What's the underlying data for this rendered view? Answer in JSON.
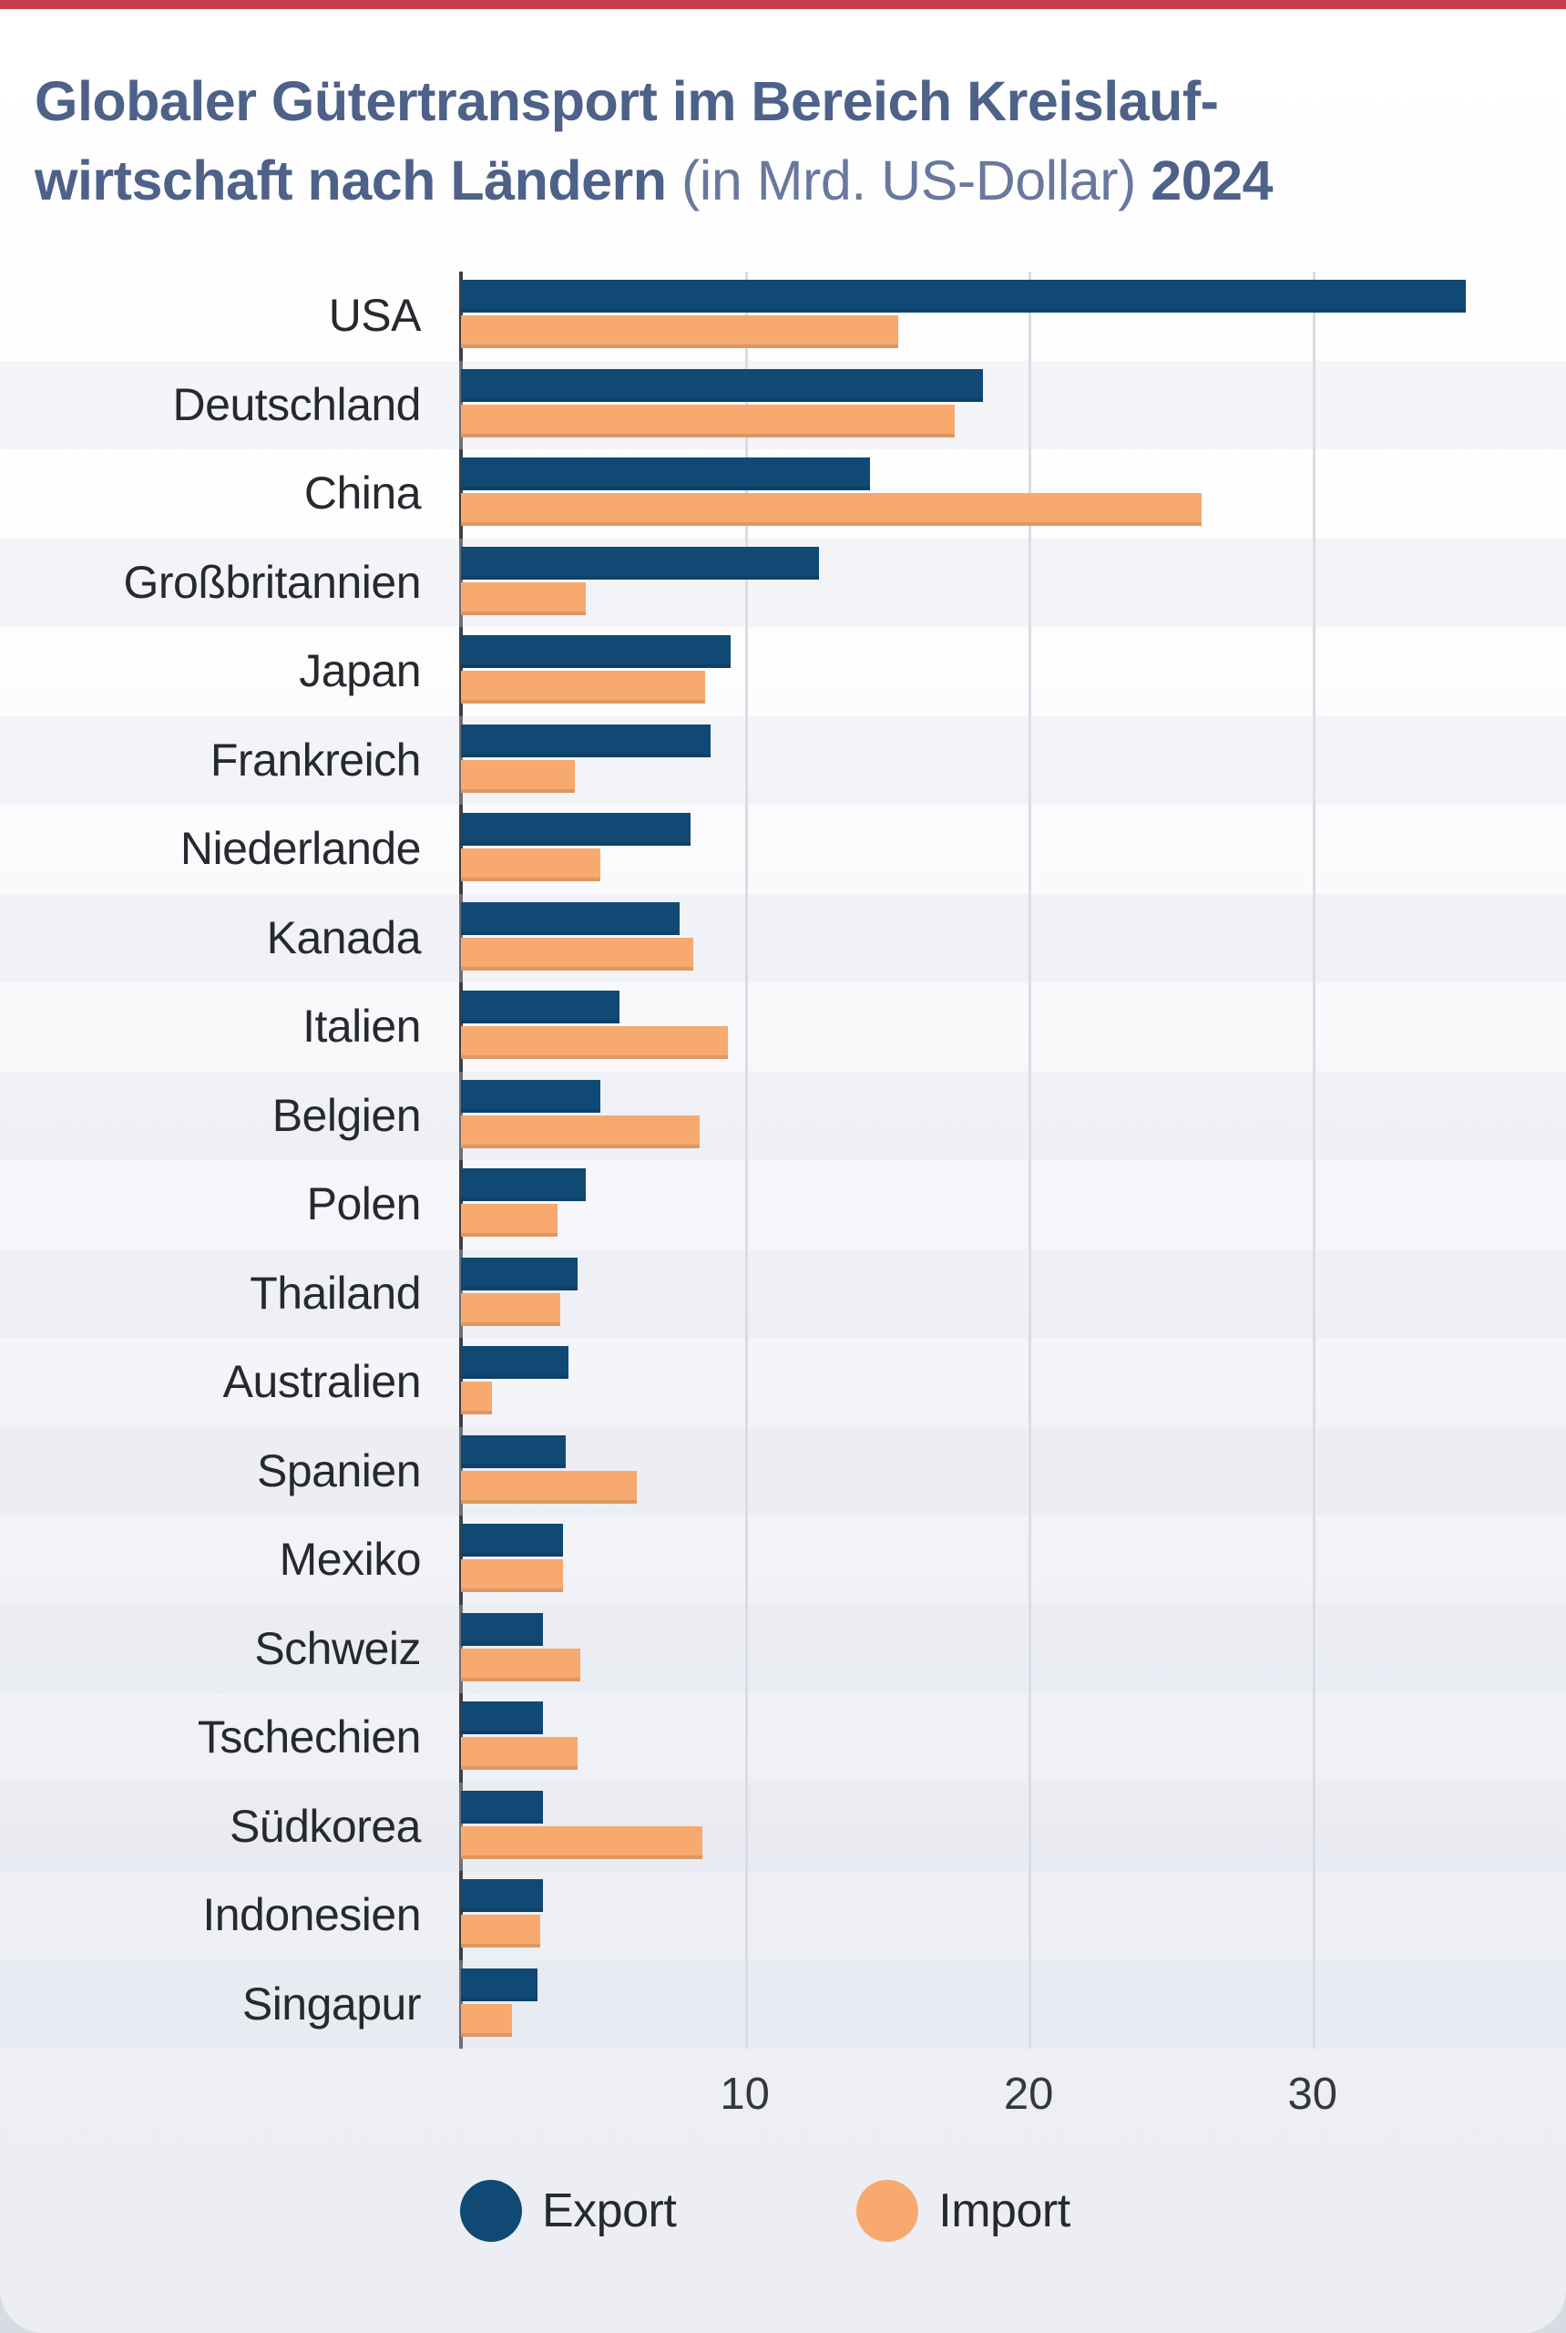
{
  "page": {
    "top_bar_color": "#c63f4f"
  },
  "title": {
    "line1_bold": "Globaler Gütertransport im Bereich Kreislauf-",
    "line2_bold": "wirtschaft nach Ländern",
    "line2_light": " (in Mrd. US-Dollar) ",
    "line2_year_bold": "2024"
  },
  "chart_data": {
    "type": "bar",
    "orientation": "horizontal",
    "title": "Globaler Gütertransport im Bereich Kreislaufwirtschaft nach Ländern (in Mrd. US-Dollar) 2024",
    "unit": "Mrd. US-Dollar",
    "categories": [
      "USA",
      "Deutschland",
      "China",
      "Großbritannien",
      "Japan",
      "Frankreich",
      "Niederlande",
      "Kanada",
      "Italien",
      "Belgien",
      "Polen",
      "Thailand",
      "Australien",
      "Spanien",
      "Mexiko",
      "Schweiz",
      "Tschechien",
      "Südkorea",
      "Indonesien",
      "Singapur"
    ],
    "series": [
      {
        "name": "Export",
        "color": "#104973",
        "values": [
          35.4,
          18.4,
          14.4,
          12.6,
          9.5,
          8.8,
          8.1,
          7.7,
          5.6,
          4.9,
          4.4,
          4.1,
          3.8,
          3.7,
          3.6,
          2.9,
          2.9,
          2.9,
          2.9,
          2.7
        ]
      },
      {
        "name": "Import",
        "color": "#f7a96e",
        "values": [
          15.4,
          17.4,
          26.1,
          4.4,
          8.6,
          4.0,
          4.9,
          8.2,
          9.4,
          8.4,
          3.4,
          3.5,
          1.1,
          6.2,
          3.6,
          4.2,
          4.1,
          8.5,
          2.8,
          1.8
        ]
      }
    ],
    "x_ticks": [
      10,
      20,
      30
    ],
    "xlim": [
      0,
      38
    ],
    "grid": "vertical-only",
    "legend_position": "bottom"
  }
}
